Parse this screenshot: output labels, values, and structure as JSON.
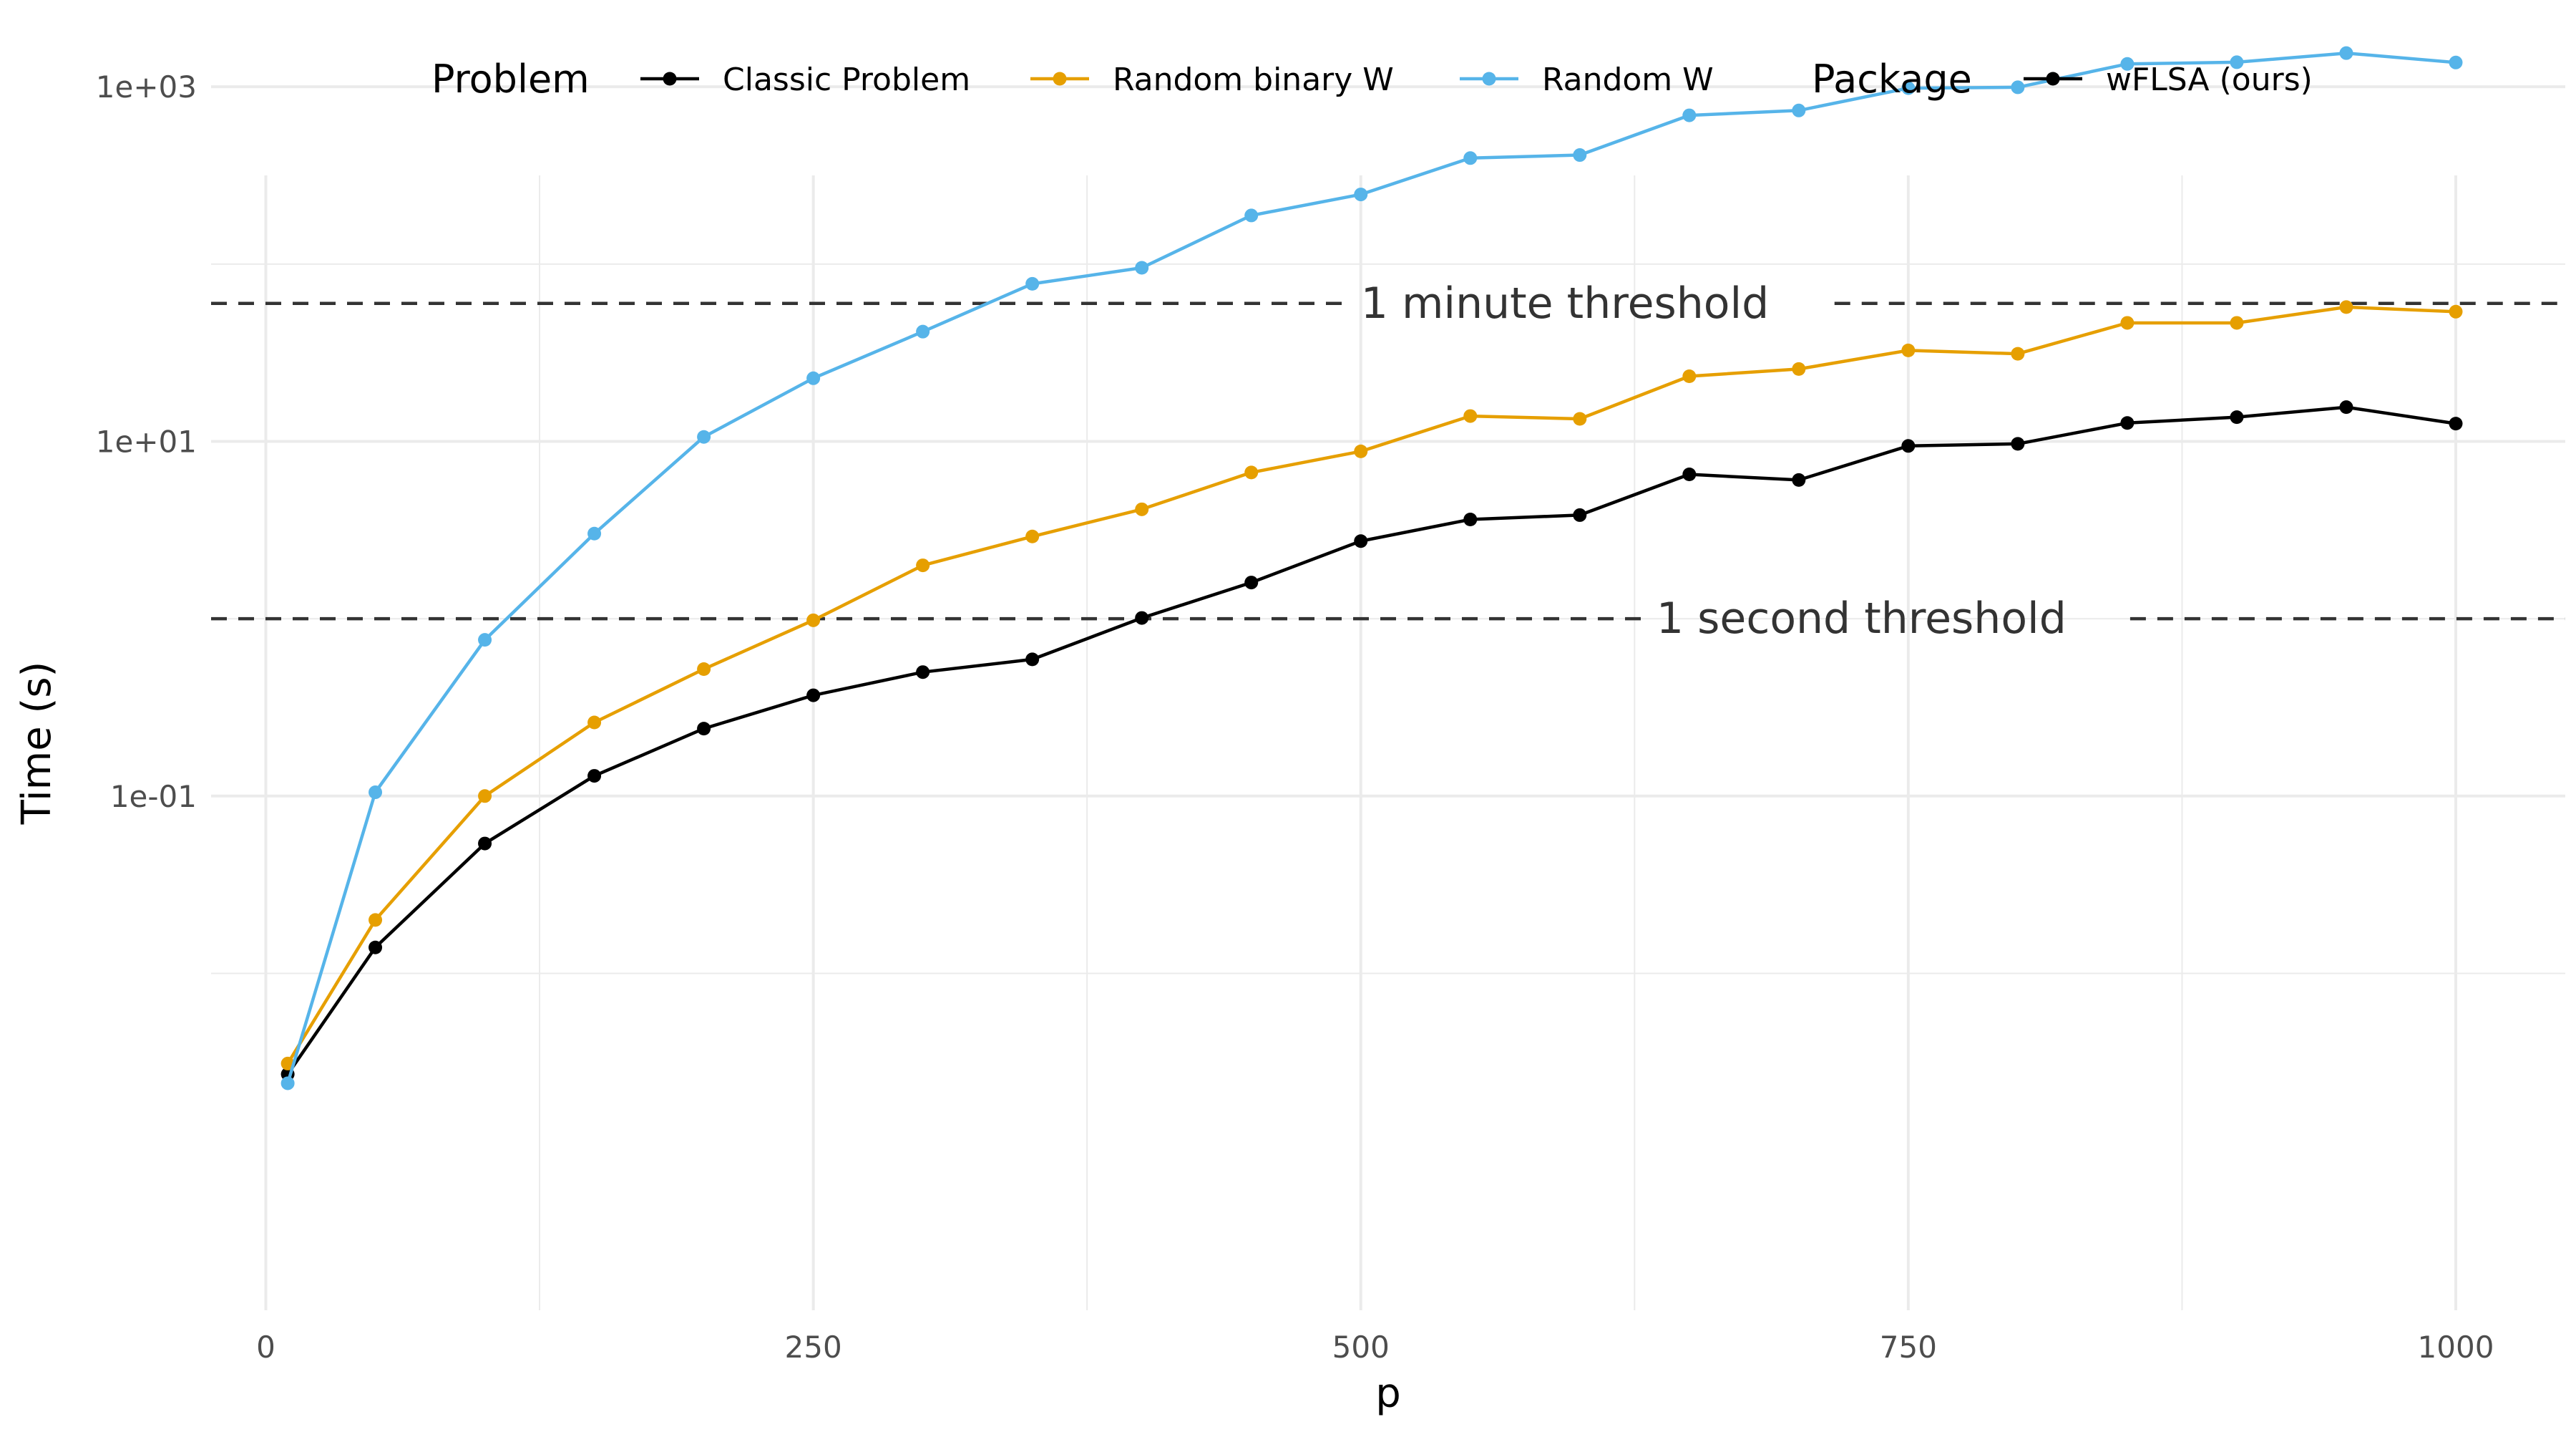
{
  "chart_data": {
    "type": "line",
    "xlabel": "p",
    "ylabel": "Time (s)",
    "xlim": [
      -25,
      1050
    ],
    "ylim_log10": [
      -3.9,
      2.5
    ],
    "y_scale": "log10",
    "grid": true,
    "x_ticks": [
      {
        "value": 0,
        "label": "0"
      },
      {
        "value": 250,
        "label": "250"
      },
      {
        "value": 500,
        "label": "500"
      },
      {
        "value": 750,
        "label": "750"
      },
      {
        "value": 1000,
        "label": "1000"
      }
    ],
    "y_ticks": [
      {
        "value": 0.1,
        "label": "1e-01"
      },
      {
        "value": 10,
        "label": "1e+01"
      },
      {
        "value": 1000,
        "label": "1e+03"
      }
    ],
    "legend": {
      "placement": "top",
      "problem_title": "Problem",
      "package_title": "Package",
      "package_label": "wFLSA (ours)"
    },
    "thresholds": [
      {
        "value": 60,
        "label": "1 minute threshold",
        "label_x": 500
      },
      {
        "value": 1,
        "label": "1 second threshold",
        "label_x": 635
      }
    ],
    "x": [
      10,
      50,
      100,
      150,
      200,
      250,
      300,
      350,
      400,
      450,
      500,
      550,
      600,
      650,
      700,
      750,
      800,
      850,
      900,
      950,
      1000
    ],
    "series": [
      {
        "name": "Classic Problem",
        "color": "#000000",
        "values": [
          0.0027,
          0.014,
          0.054,
          0.13,
          0.24,
          0.37,
          0.5,
          0.59,
          1.01,
          1.6,
          2.74,
          3.63,
          3.84,
          6.52,
          6.06,
          9.43,
          9.69,
          12.7,
          13.7,
          15.6,
          12.6
        ]
      },
      {
        "name": "Random binary W",
        "color": "#E69F00",
        "values": [
          0.0031,
          0.02,
          0.1,
          0.26,
          0.52,
          0.98,
          2.0,
          2.91,
          4.14,
          6.68,
          8.79,
          13.9,
          13.4,
          23.3,
          25.6,
          32.6,
          31.2,
          46.6,
          46.6,
          57.2,
          53.9
        ]
      },
      {
        "name": "Random W",
        "color": "#56B4E9",
        "values": [
          0.0024,
          0.105,
          0.76,
          3.02,
          10.6,
          22.7,
          41.6,
          77.4,
          95.3,
          188,
          247,
          396,
          412,
          690,
          735,
          982,
          993,
          1345,
          1375,
          1548,
          1370
        ]
      }
    ]
  }
}
